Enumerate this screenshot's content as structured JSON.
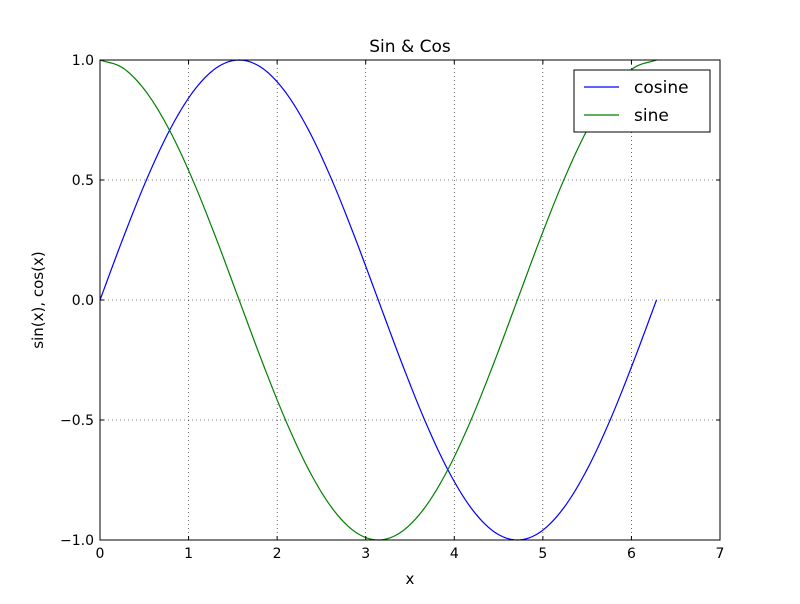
{
  "chart_data": {
    "type": "line",
    "title": "Sin & Cos",
    "xlabel": "x",
    "ylabel": "sin(x), cos(x)",
    "xlim": [
      0,
      7
    ],
    "ylim": [
      -1.0,
      1.0
    ],
    "xticks": [
      0,
      1,
      2,
      3,
      4,
      5,
      6,
      7
    ],
    "xtick_labels": [
      "0",
      "1",
      "2",
      "3",
      "4",
      "5",
      "6",
      "7"
    ],
    "yticks": [
      -1.0,
      -0.5,
      0.0,
      0.5,
      1.0
    ],
    "ytick_labels": [
      "−1.0",
      "−0.5",
      "0.0",
      "0.5",
      "1.0"
    ],
    "grid": true,
    "legend_position": "top-right",
    "x": [
      0,
      0.2618,
      0.5236,
      0.7854,
      1.0472,
      1.309,
      1.5708,
      1.8326,
      2.0944,
      2.3562,
      2.618,
      2.8798,
      3.1416,
      3.4034,
      3.6652,
      3.927,
      4.1888,
      4.4506,
      4.7124,
      4.9742,
      5.236,
      5.4978,
      5.7596,
      6.0214,
      6.2832
    ],
    "series": [
      {
        "name": "cosine",
        "color": "#0000ff",
        "values": [
          0,
          0.2588,
          0.5,
          0.7071,
          0.866,
          0.9659,
          1,
          0.9659,
          0.866,
          0.7071,
          0.5,
          0.2588,
          0,
          -0.2588,
          -0.5,
          -0.7071,
          -0.866,
          -0.9659,
          -1,
          -0.9659,
          -0.866,
          -0.7071,
          -0.5,
          -0.2588,
          0
        ]
      },
      {
        "name": "sine",
        "color": "#008000",
        "values": [
          1,
          0.9659,
          0.866,
          0.7071,
          0.5,
          0.2588,
          0,
          -0.2588,
          -0.5,
          -0.7071,
          -0.866,
          -0.9659,
          -1,
          -0.9659,
          -0.866,
          -0.7071,
          -0.5,
          -0.2588,
          0,
          0.2588,
          0.5,
          0.7071,
          0.866,
          0.9659,
          1
        ]
      }
    ]
  }
}
